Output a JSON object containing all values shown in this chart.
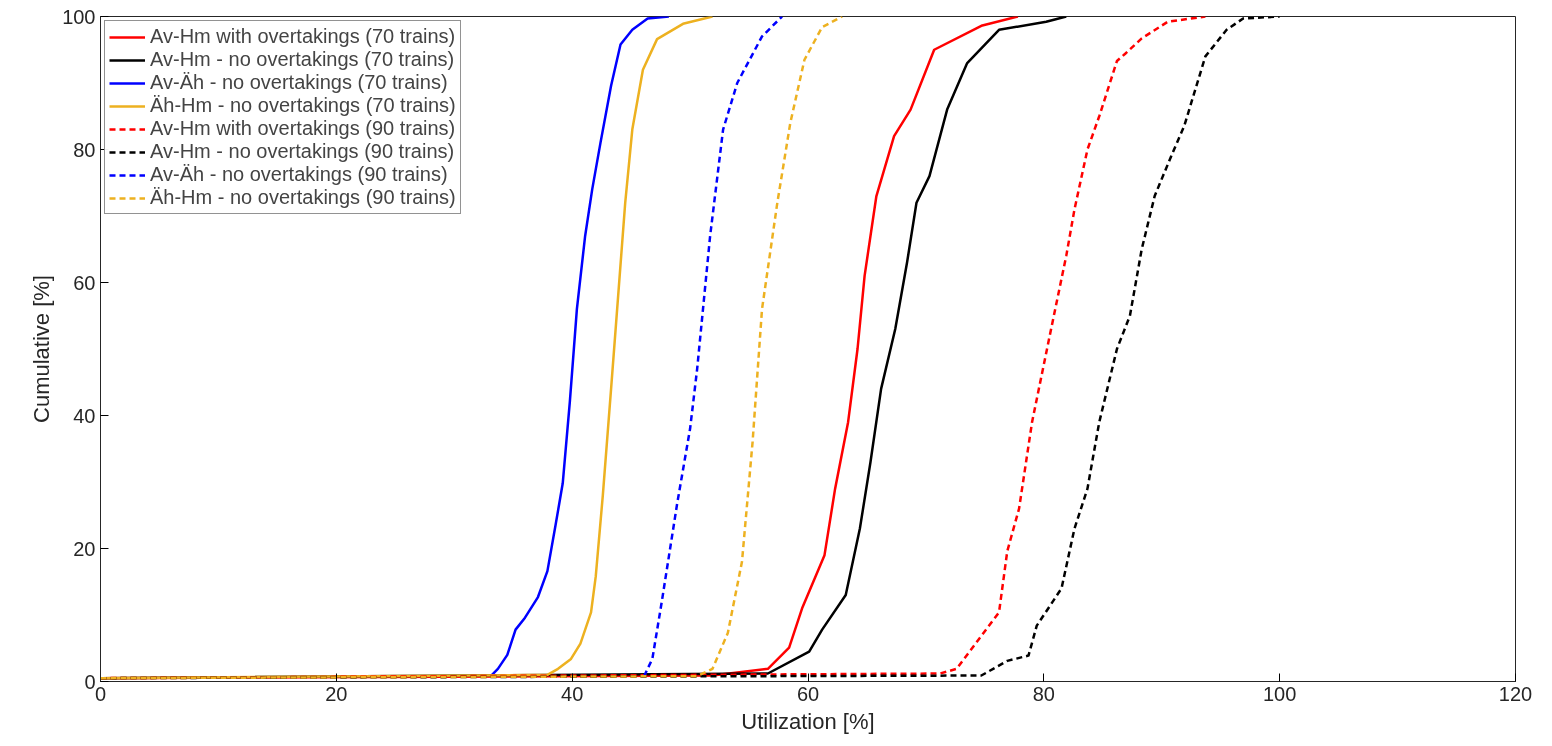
{
  "chart_data": {
    "type": "line",
    "xlabel": "Utilization [%]",
    "ylabel": "Cumulative [%]",
    "xlim": [
      0,
      120
    ],
    "ylim": [
      0,
      100
    ],
    "xticks": [
      0,
      20,
      40,
      60,
      80,
      100,
      120
    ],
    "yticks": [
      0,
      20,
      40,
      60,
      80,
      100
    ],
    "grid": false,
    "legend": "top left",
    "marker": "none",
    "series": [
      {
        "name": "Av-Hm with overtakings (70 trains)",
        "color": "#ff0000",
        "line_style": "solid",
        "x": [
          0,
          51.9,
          56.6,
          58.4,
          59.5,
          61.4,
          62.3,
          63.4,
          64.2,
          64.8,
          65.8,
          67.3,
          68.7,
          70.7,
          74.7,
          77.8
        ],
        "values": [
          0.5,
          0.9,
          1.9,
          5.1,
          11,
          19,
          29,
          39,
          50,
          61,
          73,
          82,
          86,
          95,
          98.6,
          100
        ]
      },
      {
        "name": "Av-Hm - no overtakings (70 trains)",
        "color": "#000000",
        "line_style": "solid",
        "x": [
          0,
          56.6,
          60.1,
          61.2,
          63.2,
          64.4,
          65.3,
          66.2,
          67.4,
          68.4,
          69.2,
          70.3,
          71.8,
          73.5,
          76.2,
          80.2,
          81.9
        ],
        "values": [
          0.5,
          1.2,
          4.5,
          7.8,
          13,
          23,
          33,
          44,
          53,
          63,
          72,
          76,
          86,
          93,
          98,
          99.2,
          100
        ]
      },
      {
        "name": "Av-Äh - no overtakings (70 trains)",
        "color": "#0000ff",
        "line_style": "solid",
        "x": [
          33.2,
          33.7,
          34.5,
          35.2,
          36.0,
          37.1,
          37.9,
          38.6,
          39.2,
          39.8,
          40.4,
          41.1,
          41.7,
          42.4,
          43.3,
          44.1,
          45.1,
          46.4,
          48.2
        ],
        "values": [
          1,
          1.9,
          4,
          7.8,
          9.6,
          12.7,
          16.6,
          23.6,
          29.8,
          42,
          56,
          67,
          74,
          81,
          89.6,
          95.8,
          98,
          99.7,
          100
        ]
      },
      {
        "name": "Äh-Hm - no overtakings (70 trains)",
        "color": "#edb120",
        "line_style": "solid",
        "x": [
          0,
          37.9,
          38.8,
          39.9,
          40.7,
          41.6,
          42.0,
          42.6,
          43.3,
          43.9,
          44.5,
          45.1,
          46.0,
          47.2,
          49.4,
          51.9
        ],
        "values": [
          0.5,
          1,
          1.9,
          3.4,
          5.7,
          10.4,
          15.8,
          28,
          44,
          58,
          72,
          83,
          92,
          96.6,
          98.9,
          100
        ]
      },
      {
        "name": "Av-Hm with overtakings (90 trains)",
        "color": "#ff0000",
        "line_style": "dashed",
        "x": [
          0,
          71.2,
          72.6,
          76.2,
          76.9,
          77.9,
          79.0,
          80.5,
          81.9,
          82.6,
          83.7,
          84.7,
          86.2,
          86.9,
          88.3,
          90.5,
          93.7
        ],
        "values": [
          0.5,
          1.2,
          1.9,
          10.4,
          19.6,
          26,
          39,
          52,
          64,
          71,
          80,
          85,
          93.3,
          94.4,
          96.7,
          99.2,
          100
        ]
      },
      {
        "name": "Av-Hm - no overtakings (90 trains)",
        "color": "#000000",
        "line_style": "dashed",
        "x": [
          0,
          74.7,
          76.9,
          78.7,
          79.4,
          81.5,
          82.6,
          83.7,
          84.1,
          84.7,
          86.2,
          87.3,
          88.3,
          89.4,
          90.8,
          91.9,
          93.7,
          95.5,
          96.9,
          100
        ],
        "values": [
          0.5,
          0.9,
          3.1,
          3.9,
          8.4,
          14,
          23,
          29,
          33,
          39,
          50,
          55,
          65,
          73,
          79,
          83.5,
          94,
          98,
          99.7,
          100
        ]
      },
      {
        "name": "Av-Äh - no overtakings (90 trains)",
        "color": "#0000ff",
        "line_style": "dashed",
        "x": [
          46.1,
          46.8,
          47.6,
          48.9,
          50.0,
          50.6,
          51.7,
          52.8,
          54.0,
          56.1,
          57.8
        ],
        "values": [
          0.8,
          3.4,
          12,
          26.7,
          38,
          47,
          67,
          83,
          90,
          97,
          100
        ]
      },
      {
        "name": "Äh-Hm - no overtakings (90 trains)",
        "color": "#edb120",
        "line_style": "dashed",
        "x": [
          0,
          50.6,
          51.9,
          53.2,
          54.4,
          55.3,
          56.1,
          57.4,
          58.5,
          59.7,
          61.2,
          62.9
        ],
        "values": [
          0.5,
          0.8,
          1.9,
          7.3,
          18,
          36,
          56,
          72,
          84,
          93.5,
          98.4,
          100
        ]
      }
    ]
  }
}
